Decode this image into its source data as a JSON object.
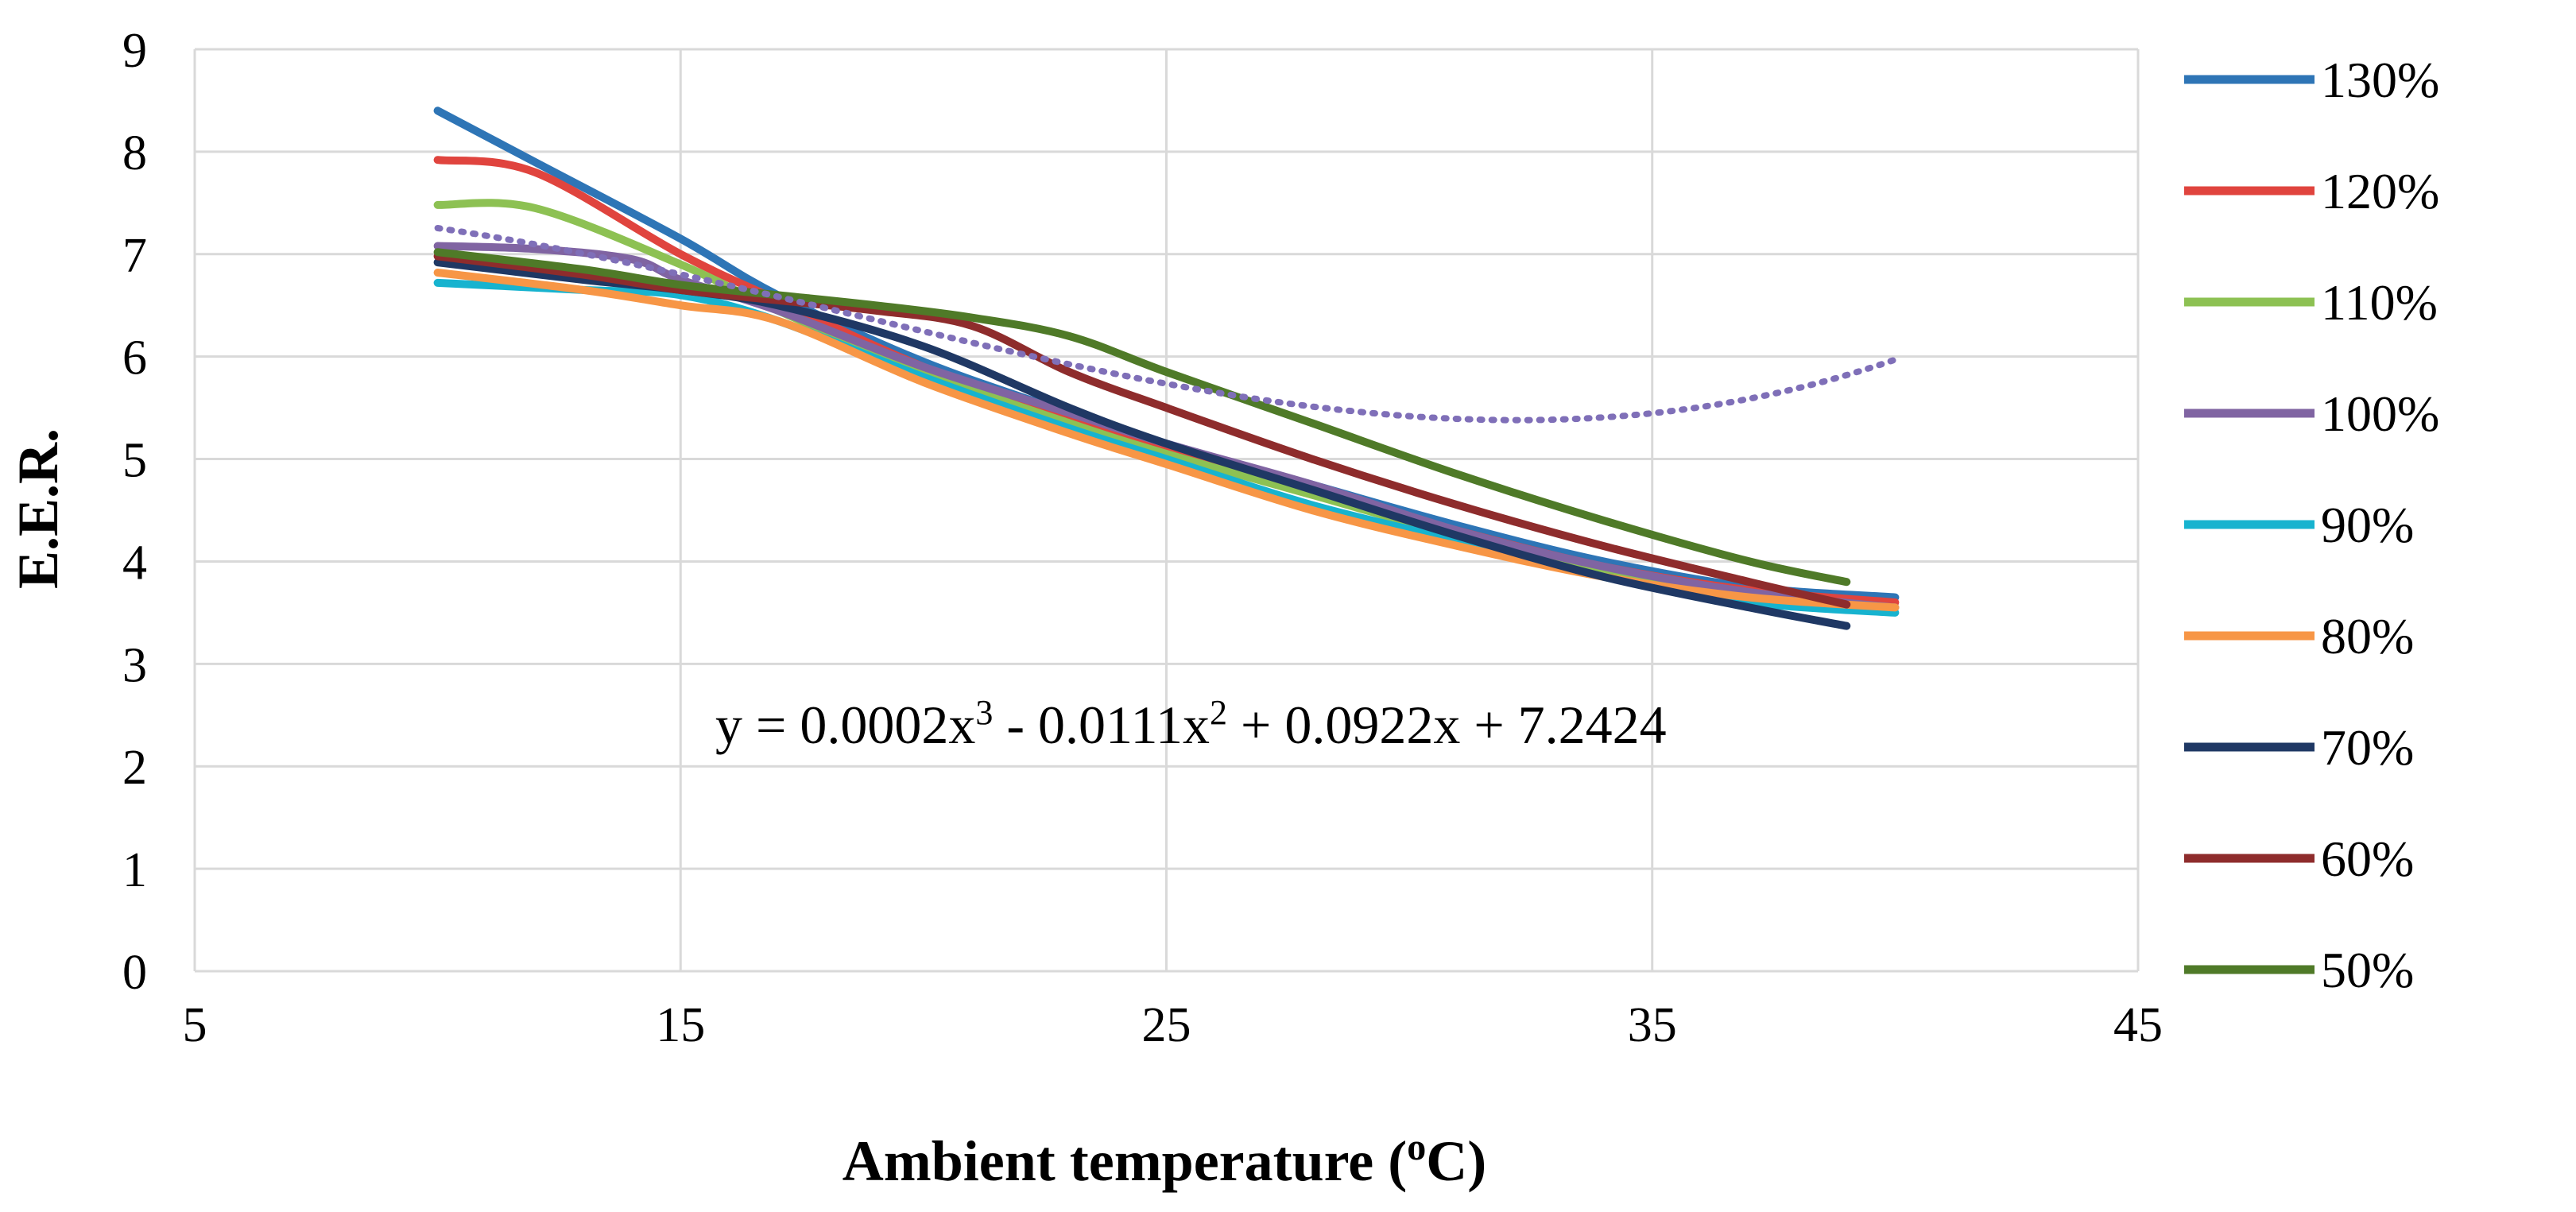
{
  "chart_data": {
    "type": "line",
    "title": "",
    "xlabel_main": "Ambient temperature (",
    "xlabel_sup": "o",
    "xlabel_end": "C)",
    "ylabel": "E.E.R.",
    "xlim": [
      5,
      45
    ],
    "ylim": [
      0,
      9
    ],
    "xticks": [
      5,
      15,
      25,
      35,
      45
    ],
    "yticks": [
      0,
      1,
      2,
      3,
      4,
      5,
      6,
      7,
      8,
      9
    ],
    "grid": true,
    "legend_position": "right",
    "series": [
      {
        "name": "130%",
        "color": "#2E75B6",
        "x": [
          10,
          12,
          15,
          17,
          20,
          23,
          25,
          28,
          31,
          34,
          37,
          40
        ],
        "y": [
          8.4,
          7.9,
          7.15,
          6.6,
          5.95,
          5.45,
          5.15,
          4.75,
          4.35,
          4.0,
          3.75,
          3.65
        ]
      },
      {
        "name": "120%",
        "color": "#E0443E",
        "x": [
          10,
          12,
          15,
          17,
          20,
          23,
          25,
          28,
          31,
          34,
          37,
          40
        ],
        "y": [
          7.92,
          7.8,
          7.0,
          6.55,
          5.9,
          5.4,
          5.1,
          4.7,
          4.3,
          3.95,
          3.72,
          3.6
        ]
      },
      {
        "name": "110%",
        "color": "#8DC153",
        "x": [
          10,
          12,
          15,
          17,
          20,
          23,
          25,
          28,
          31,
          34,
          37,
          40
        ],
        "y": [
          7.48,
          7.45,
          6.9,
          6.45,
          5.85,
          5.35,
          5.05,
          4.65,
          4.25,
          3.9,
          3.65,
          3.55
        ]
      },
      {
        "name": "100%",
        "color": "#8064A2",
        "x": [
          10,
          12,
          14,
          15,
          17,
          20,
          23,
          25,
          28,
          31,
          34,
          37,
          40
        ],
        "y": [
          7.08,
          7.05,
          6.95,
          6.75,
          6.45,
          5.9,
          5.45,
          5.15,
          4.75,
          4.3,
          3.95,
          3.7,
          3.55
        ]
      },
      {
        "name": "90%",
        "color": "#17B3CF",
        "x": [
          10,
          13,
          15,
          17,
          20,
          23,
          25,
          28,
          31,
          34,
          37,
          40
        ],
        "y": [
          6.72,
          6.65,
          6.6,
          6.35,
          5.8,
          5.3,
          5.0,
          4.55,
          4.2,
          3.85,
          3.6,
          3.5
        ]
      },
      {
        "name": "80%",
        "color": "#F79646",
        "x": [
          10,
          13,
          15,
          17,
          20,
          23,
          25,
          28,
          31,
          34,
          37,
          40
        ],
        "y": [
          6.82,
          6.65,
          6.5,
          6.35,
          5.75,
          5.25,
          4.95,
          4.5,
          4.15,
          3.85,
          3.65,
          3.55
        ]
      },
      {
        "name": "70%",
        "color": "#1F3864",
        "x": [
          10,
          13,
          15,
          17,
          20,
          23,
          25,
          28,
          31,
          34,
          37,
          39
        ],
        "y": [
          6.92,
          6.75,
          6.65,
          6.5,
          6.1,
          5.5,
          5.15,
          4.7,
          4.25,
          3.85,
          3.55,
          3.37
        ]
      },
      {
        "name": "60%",
        "color": "#8E2C2C",
        "x": [
          10,
          13,
          15,
          17,
          19,
          21,
          23,
          25,
          28,
          31,
          34,
          37,
          39
        ],
        "y": [
          6.98,
          6.8,
          6.65,
          6.55,
          6.45,
          6.3,
          5.85,
          5.5,
          5.0,
          4.55,
          4.15,
          3.8,
          3.58
        ]
      },
      {
        "name": "50%",
        "color": "#4F7A28",
        "x": [
          10,
          13,
          15,
          17,
          19,
          21,
          23,
          25,
          28,
          31,
          34,
          37,
          39
        ],
        "y": [
          7.02,
          6.85,
          6.7,
          6.6,
          6.5,
          6.38,
          6.2,
          5.85,
          5.35,
          4.85,
          4.4,
          4.0,
          3.8
        ]
      }
    ],
    "trendline": {
      "color": "#7F6FB8",
      "coefficients": [
        0.0002,
        -0.0111,
        0.0922,
        7.2424
      ],
      "x_range": [
        10,
        40
      ]
    },
    "annotation": {
      "text_prefix": "y = 0.0002x",
      "sup1": "3",
      "text_mid": " - 0.0111x",
      "sup2": "2",
      "text_end": " + 0.0922x + 7.2424"
    }
  }
}
